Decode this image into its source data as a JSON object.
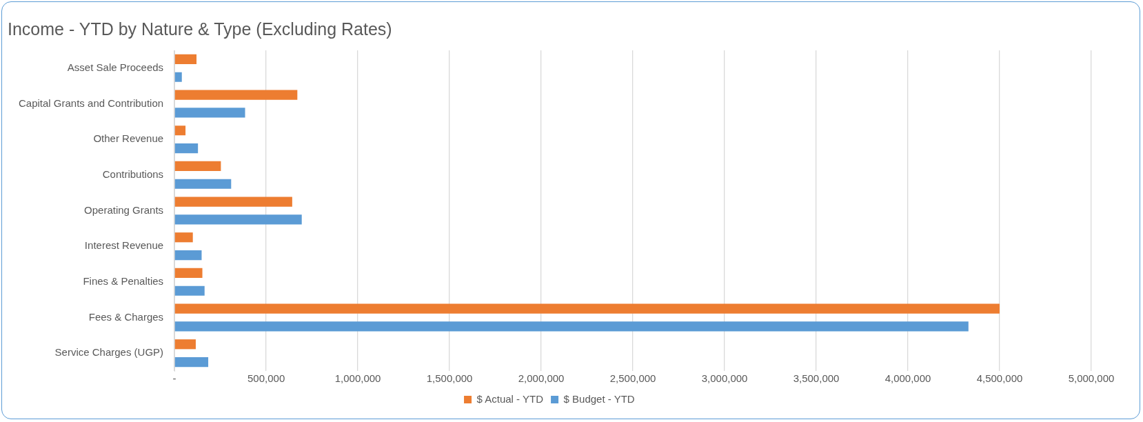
{
  "chart_data": {
    "type": "bar",
    "orientation": "horizontal",
    "title": "Income - YTD by Nature & Type (Excluding Rates)",
    "categories": [
      "Asset Sale Proceeds",
      "Capital Grants and Contribution",
      "Other Revenue",
      "Contributions",
      "Operating Grants",
      "Interest Revenue",
      "Fines & Penalties",
      "Fees & Charges",
      "Service Charges (UGP)"
    ],
    "series": [
      {
        "name": "$ Actual - YTD",
        "color": "#ed7d31",
        "values": [
          120000,
          670000,
          60000,
          253000,
          642000,
          100000,
          152000,
          4500000,
          116000
        ]
      },
      {
        "name": "$ Budget - YTD",
        "color": "#5b9bd5",
        "values": [
          40000,
          385000,
          128000,
          309000,
          694000,
          148000,
          164000,
          4330000,
          184000
        ]
      }
    ],
    "xlim": [
      0,
      5000000
    ],
    "xticks": [
      {
        "value": 0,
        "label": "-"
      },
      {
        "value": 500000,
        "label": "500,000"
      },
      {
        "value": 1000000,
        "label": "1,000,000"
      },
      {
        "value": 1500000,
        "label": "1,500,000"
      },
      {
        "value": 2000000,
        "label": "2,000,000"
      },
      {
        "value": 2500000,
        "label": "2,500,000"
      },
      {
        "value": 3000000,
        "label": "3,000,000"
      },
      {
        "value": 3500000,
        "label": "3,500,000"
      },
      {
        "value": 4000000,
        "label": "4,000,000"
      },
      {
        "value": 4500000,
        "label": "4,500,000"
      },
      {
        "value": 5000000,
        "label": "5,000,000"
      }
    ],
    "grid": "x",
    "legend": "bottom"
  }
}
